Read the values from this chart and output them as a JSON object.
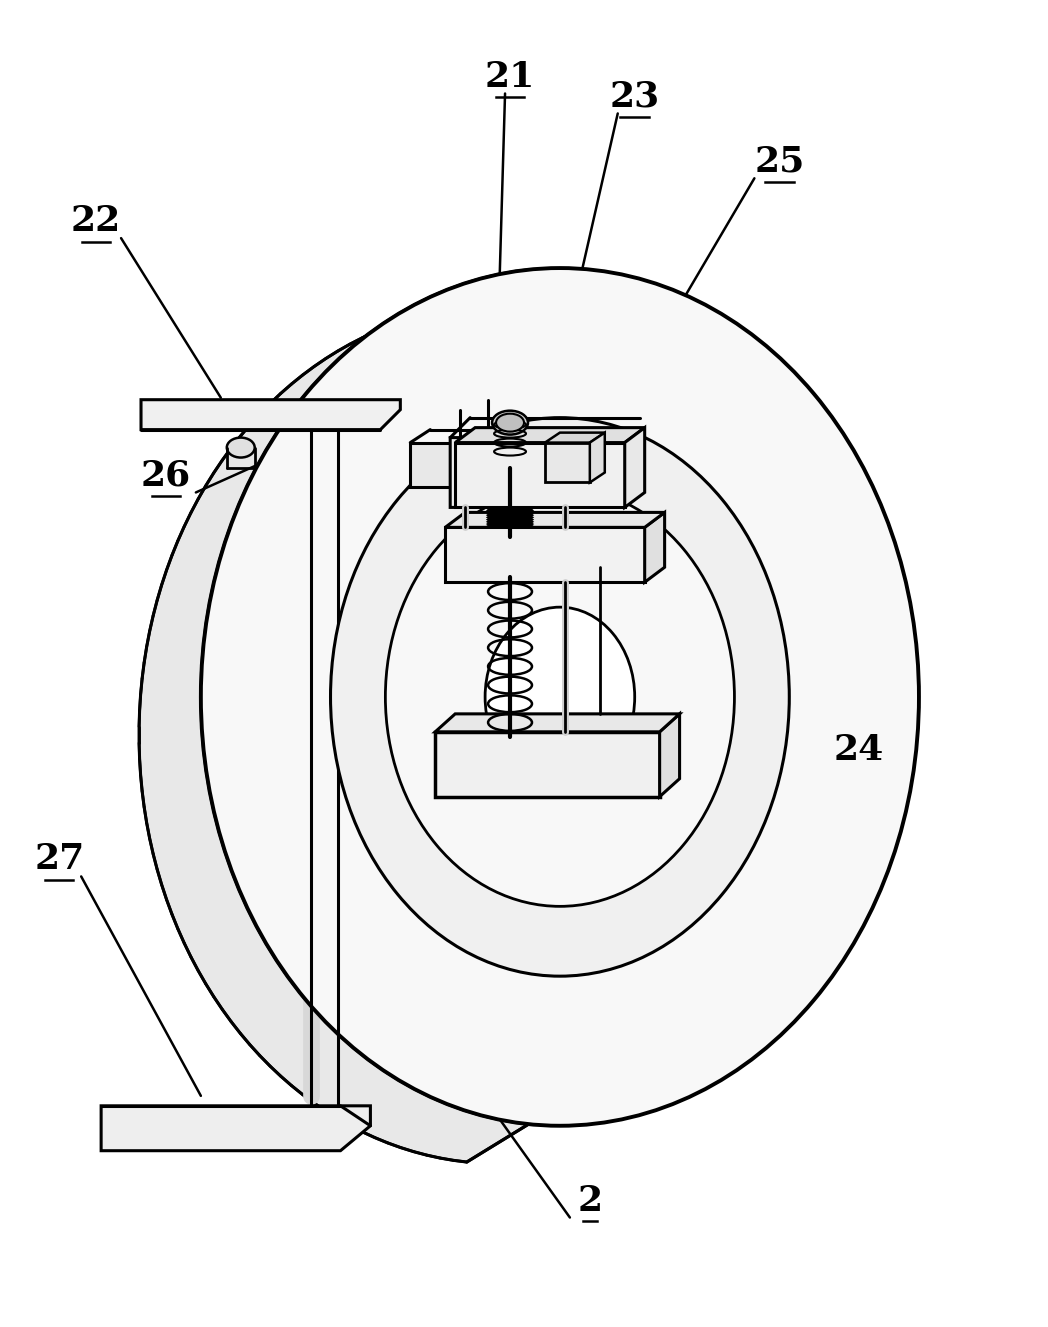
{
  "bg_color": "#ffffff",
  "line_color": "#000000",
  "lw": 2.2,
  "fig_width": 10.48,
  "fig_height": 13.27,
  "dpi": 100
}
